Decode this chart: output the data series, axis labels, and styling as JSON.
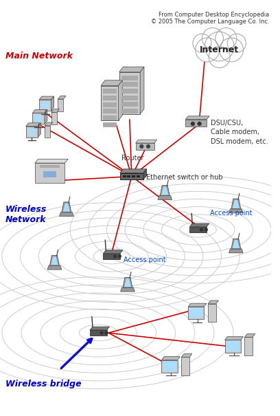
{
  "title_line1": "From Computer Desktop Encyclopedia",
  "title_line2": "© 2005 The Computer Language Co. Inc.",
  "bg_color": "#ffffff",
  "main_network_label": "Main Network",
  "wireless_network_label": "Wireless\nNetwork",
  "wireless_bridge_label": "Wireless bridge",
  "internet_label": "Internet",
  "router_label": "Router",
  "dsu_label": "DSU/CSU,\nCable modem,\nDSL modem, etc.",
  "ethernet_label": "Ethernet switch or hub",
  "access_point_left_label": "Access point",
  "access_point_right_label": "Access point",
  "red_color": "#cc0000",
  "blue_arr_color": "#1111cc",
  "label_blue": "#0000cc",
  "label_red": "#cc0000",
  "ring_color": "#cccccc",
  "line_width": 1.2
}
